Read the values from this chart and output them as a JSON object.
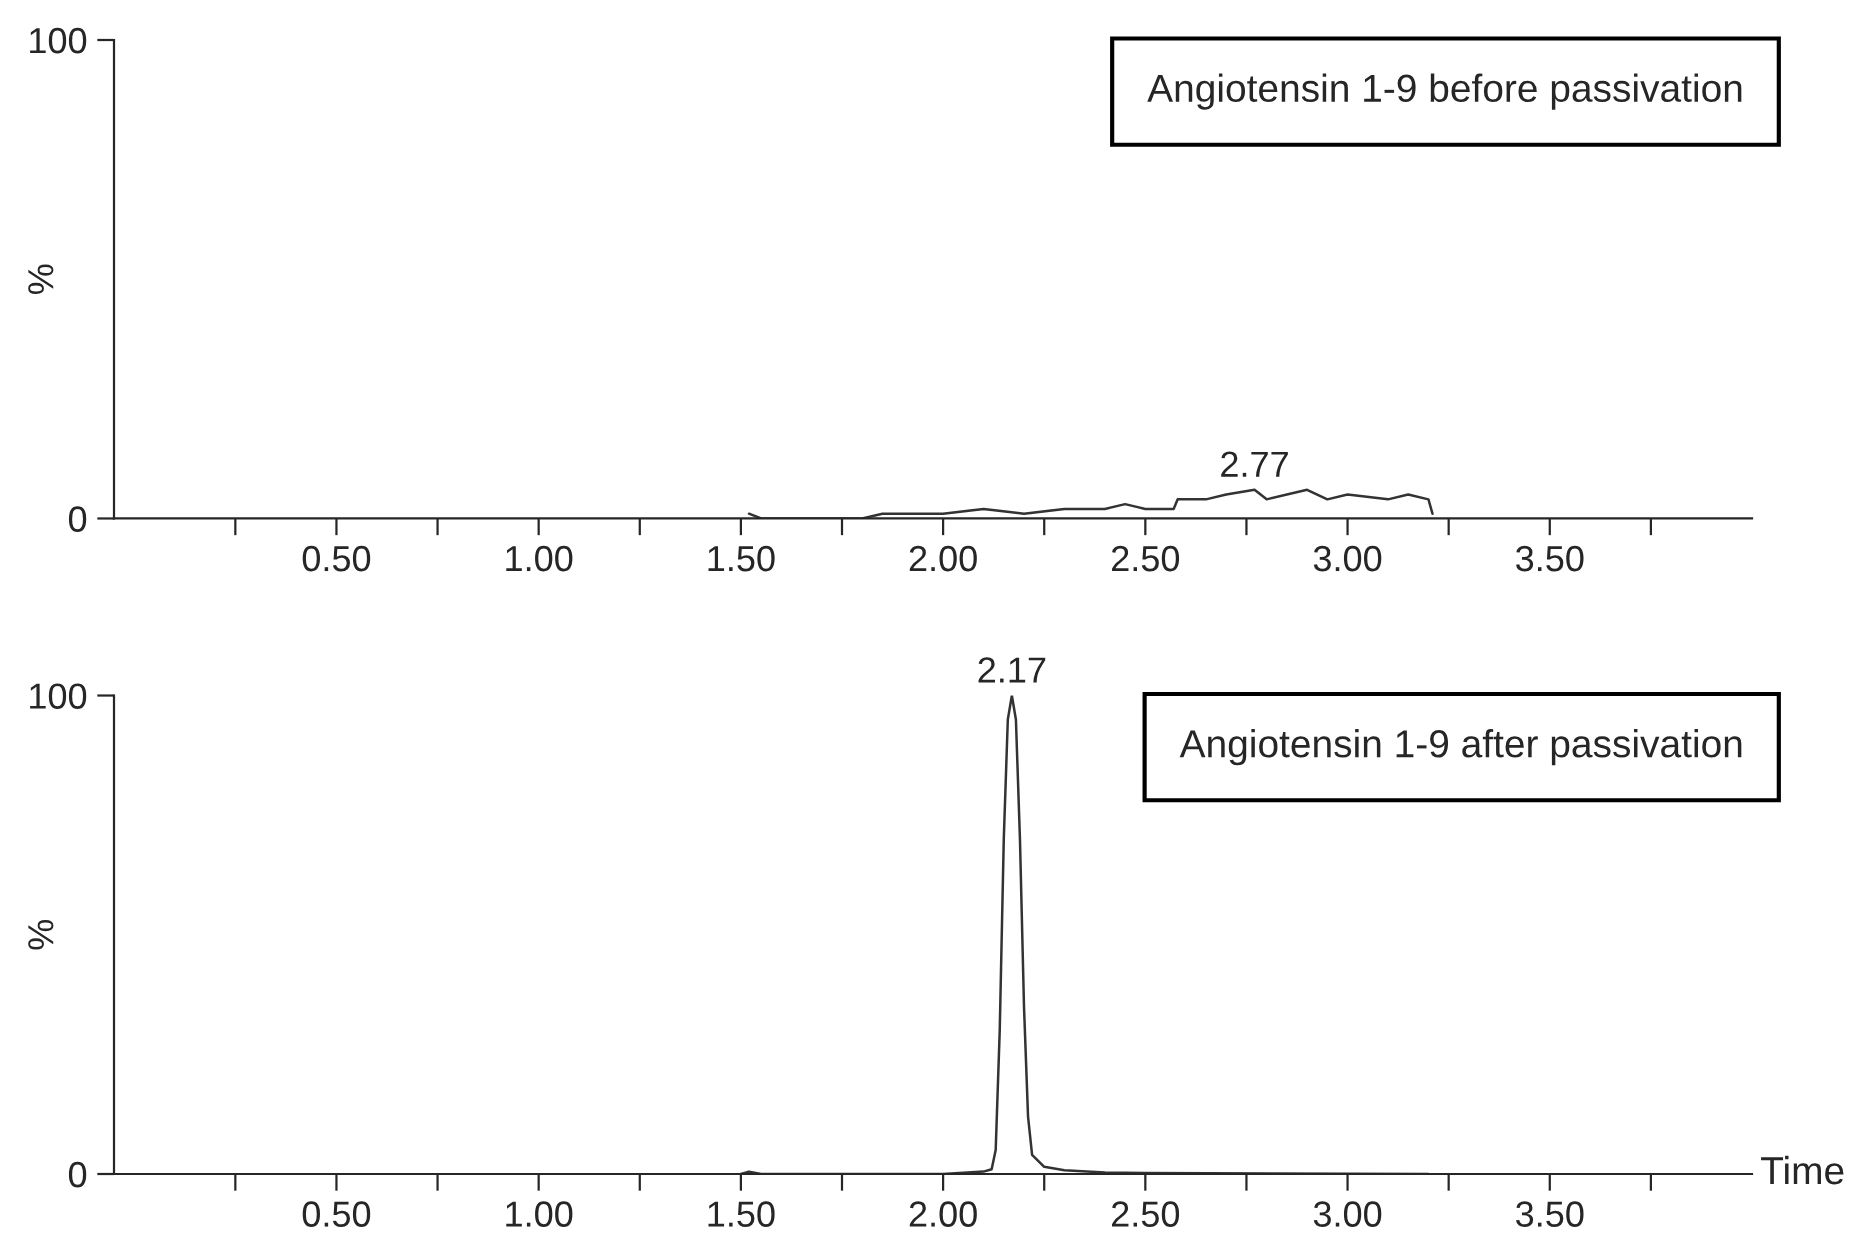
{
  "chart_data": [
    {
      "type": "line",
      "ylabel": "%",
      "xlim": [
        -0.05,
        4.0
      ],
      "ylim": [
        0,
        100
      ],
      "xticks": [
        {
          "value": 0.25,
          "label": null
        },
        {
          "value": 0.5,
          "label": "0.50"
        },
        {
          "value": 0.75,
          "label": null
        },
        {
          "value": 1.0,
          "label": "1.00"
        },
        {
          "value": 1.25,
          "label": null
        },
        {
          "value": 1.5,
          "label": "1.50"
        },
        {
          "value": 1.75,
          "label": null
        },
        {
          "value": 2.0,
          "label": "2.00"
        },
        {
          "value": 2.25,
          "label": null
        },
        {
          "value": 2.5,
          "label": "2.50"
        },
        {
          "value": 2.75,
          "label": null
        },
        {
          "value": 3.0,
          "label": "3.00"
        },
        {
          "value": 3.25,
          "label": null
        },
        {
          "value": 3.5,
          "label": "3.50"
        },
        {
          "value": 3.75,
          "label": null
        }
      ],
      "yticks": [
        0,
        100
      ],
      "series": [
        {
          "color": "#333333",
          "x": [
            1.52,
            1.55,
            1.6,
            1.7,
            1.8,
            1.85,
            1.9,
            2.0,
            2.1,
            2.2,
            2.3,
            2.4,
            2.45,
            2.5,
            2.57,
            2.58,
            2.65,
            2.7,
            2.77,
            2.8,
            2.85,
            2.9,
            2.95,
            3.0,
            3.1,
            3.15,
            3.2,
            3.21
          ],
          "values": [
            1,
            0,
            0,
            0,
            0,
            1,
            1,
            1,
            2,
            1,
            2,
            2,
            3,
            2,
            2,
            4,
            4,
            5,
            6,
            4,
            5,
            6,
            4,
            5,
            4,
            5,
            4,
            1
          ]
        }
      ],
      "annotations": [
        {
          "text": "2.77",
          "x": 2.77,
          "y": 6
        },
        "Angiotensin 1-9 before passivation"
      ],
      "grid": false,
      "legend": false
    },
    {
      "type": "line",
      "ylabel": "%",
      "xlabel": "Time",
      "xlim": [
        -0.05,
        4.0
      ],
      "ylim": [
        0,
        100
      ],
      "xticks": [
        {
          "value": 0.25,
          "label": null
        },
        {
          "value": 0.5,
          "label": "0.50"
        },
        {
          "value": 0.75,
          "label": null
        },
        {
          "value": 1.0,
          "label": "1.00"
        },
        {
          "value": 1.25,
          "label": null
        },
        {
          "value": 1.5,
          "label": "1.50"
        },
        {
          "value": 1.75,
          "label": null
        },
        {
          "value": 2.0,
          "label": "2.00"
        },
        {
          "value": 2.25,
          "label": null
        },
        {
          "value": 2.5,
          "label": "2.50"
        },
        {
          "value": 2.75,
          "label": null
        },
        {
          "value": 3.0,
          "label": "3.00"
        },
        {
          "value": 3.25,
          "label": null
        },
        {
          "value": 3.5,
          "label": "3.50"
        },
        {
          "value": 3.75,
          "label": null
        }
      ],
      "yticks": [
        0,
        100
      ],
      "series": [
        {
          "color": "#333333",
          "x": [
            1.5,
            1.52,
            1.55,
            2.0,
            2.1,
            2.12,
            2.13,
            2.14,
            2.15,
            2.16,
            2.17,
            2.18,
            2.19,
            2.2,
            2.21,
            2.22,
            2.25,
            2.3,
            2.4,
            2.5,
            3.2
          ],
          "values": [
            0,
            0.5,
            0,
            0,
            0.5,
            1,
            5,
            30,
            70,
            95,
            100,
            95,
            70,
            35,
            12,
            4,
            1.5,
            0.8,
            0.3,
            0.2,
            0
          ]
        }
      ],
      "annotations": [
        {
          "text": "2.17",
          "x": 2.17,
          "y": 100
        },
        "Angiotensin 1-9 after passivation"
      ],
      "grid": false,
      "legend": false
    }
  ]
}
